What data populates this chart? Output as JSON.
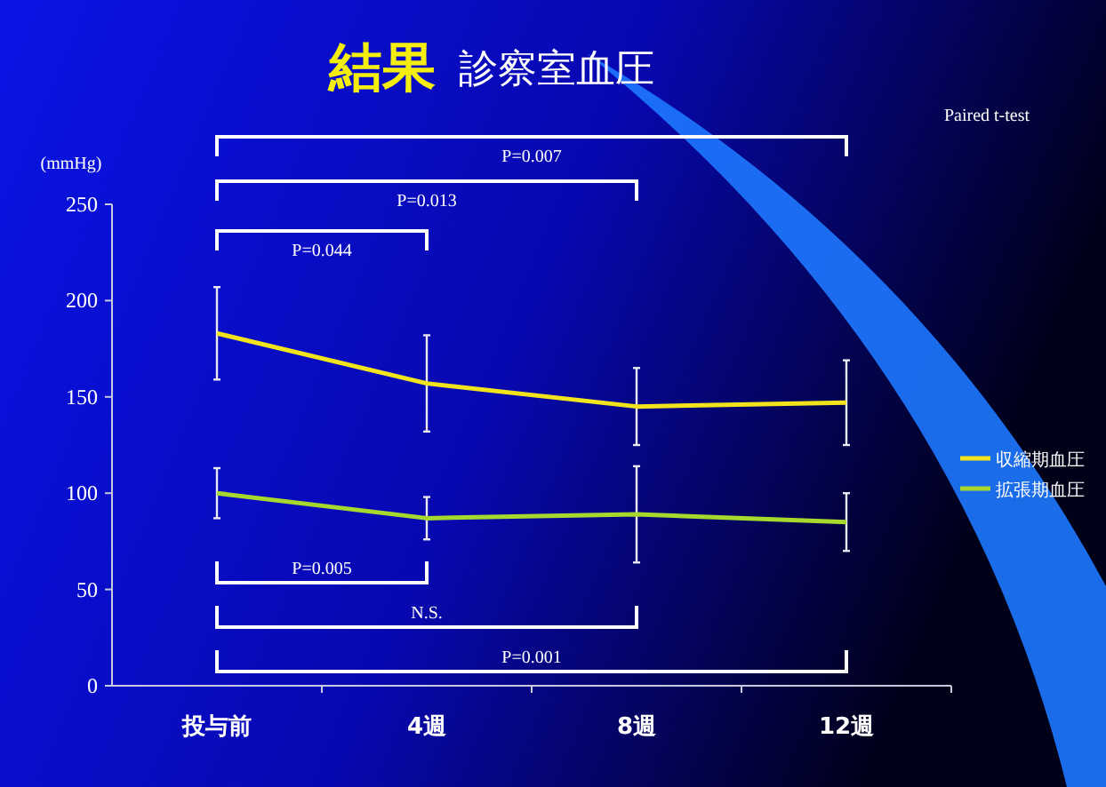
{
  "chart_data": {
    "type": "line",
    "title": "結果",
    "subtitle": "診察室血圧",
    "ylabel": "(mmHg)",
    "categories": [
      "投与前",
      "4週",
      "8週",
      "12週"
    ],
    "series": [
      {
        "name": "収縮期血圧",
        "color": "#f2e41c",
        "values": [
          183,
          157,
          145,
          147
        ],
        "errors": [
          24,
          25,
          20,
          22
        ]
      },
      {
        "name": "拡張期血圧",
        "color": "#a6d82e",
        "values": [
          100,
          87,
          89,
          85
        ],
        "errors": [
          13,
          11,
          25,
          15
        ]
      }
    ],
    "ylim": [
      0,
      250
    ],
    "yticks": [
      0,
      50,
      100,
      150,
      200,
      250
    ],
    "grid": false,
    "legend": "right",
    "marker": "none",
    "line_style": "solid",
    "annotations": [
      "P=0.007",
      "P=0.013",
      "P=0.044",
      "P=0.005",
      "N.S.",
      "P=0.001",
      "Paired t-test"
    ]
  }
}
